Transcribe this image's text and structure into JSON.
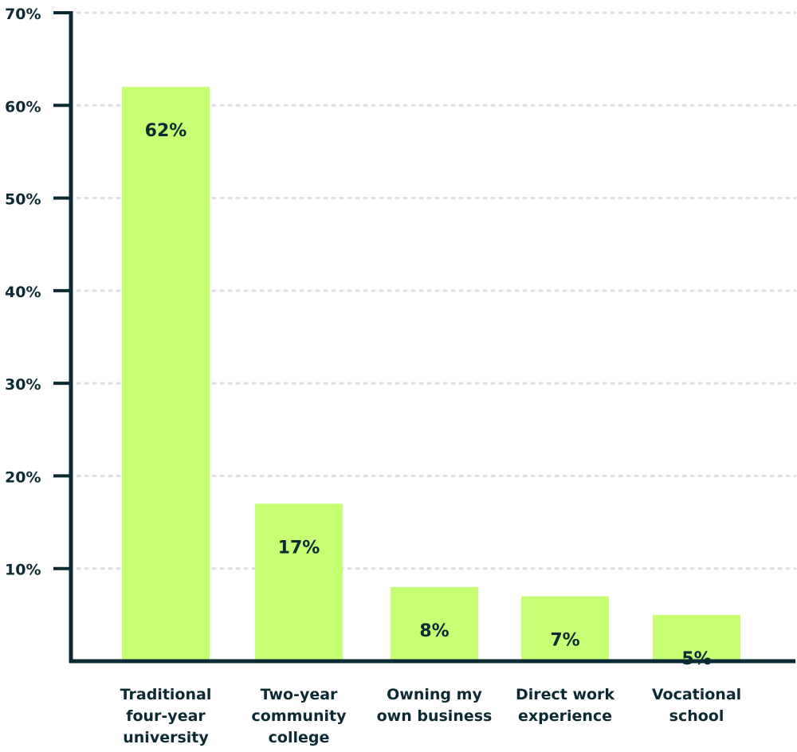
{
  "chart_data": {
    "type": "bar",
    "title": "",
    "xlabel": "",
    "ylabel": "",
    "categories": [
      [
        "Traditional",
        "four-year",
        "university"
      ],
      [
        "Two-year",
        "community",
        "college"
      ],
      [
        "Owning my",
        "own business"
      ],
      [
        "Direct work",
        "experience"
      ],
      [
        "Vocational",
        "school"
      ]
    ],
    "values": [
      62,
      17,
      8,
      7,
      5
    ],
    "value_labels": [
      "62%",
      "17%",
      "8%",
      "7%",
      "5%"
    ],
    "ylim": [
      0,
      70
    ],
    "yticks": [
      10,
      20,
      30,
      40,
      50,
      60,
      70
    ],
    "ytick_labels": [
      "10%",
      "20%",
      "30%",
      "40%",
      "50%",
      "60%",
      "70%"
    ],
    "grid": true,
    "legend": "none",
    "colors": {
      "bar": "#c6ff73",
      "axis": "#0b2a33",
      "text": "#0b2a33",
      "grid": "#d9dee2"
    }
  }
}
